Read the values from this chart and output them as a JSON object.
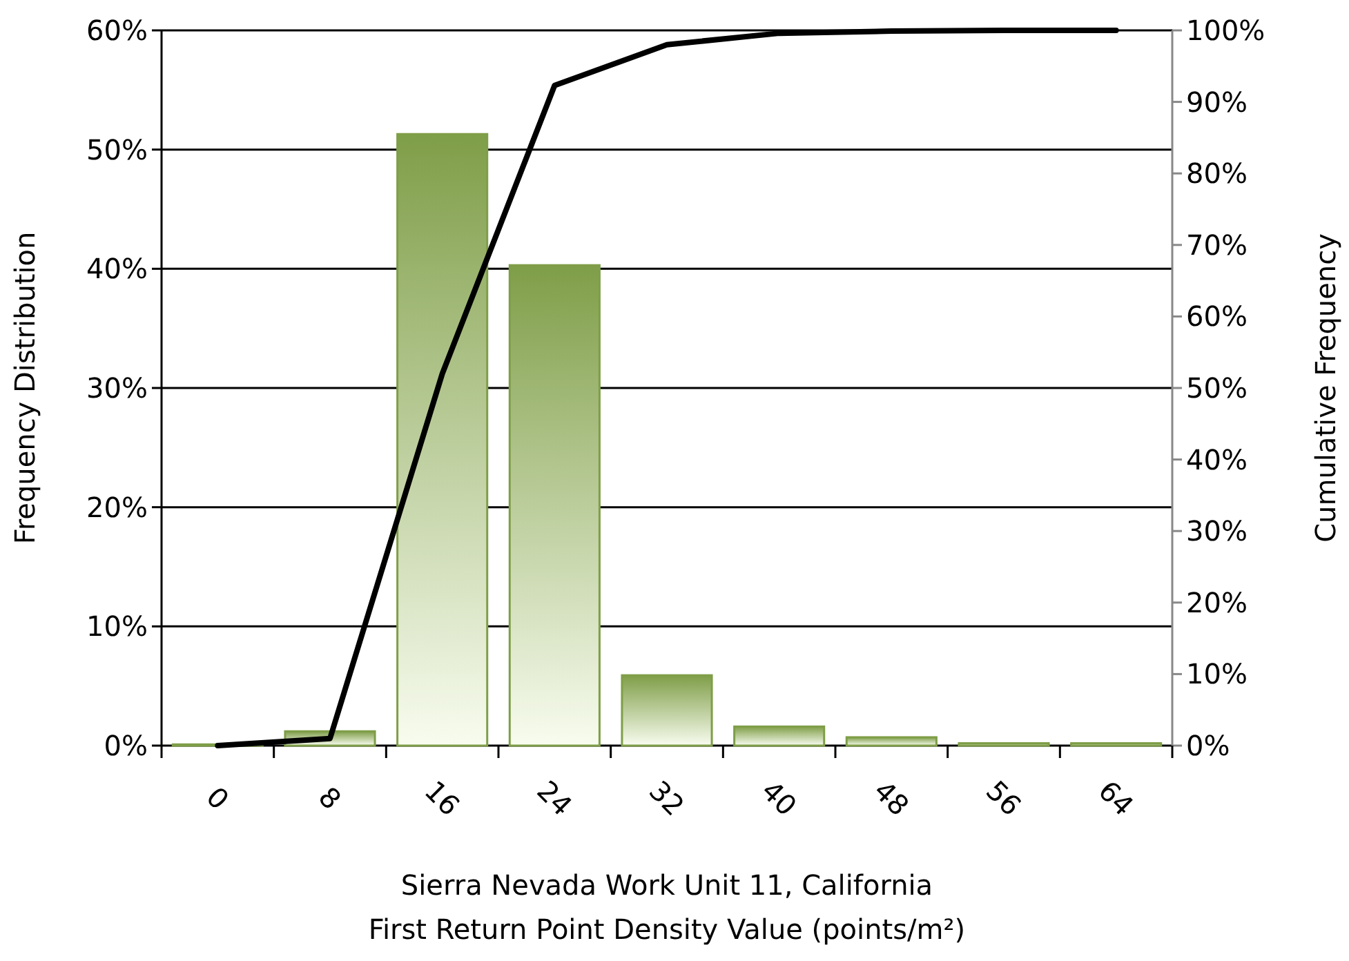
{
  "chart_data": {
    "type": "bar",
    "xlabel": "Sierra Nevada Work Unit 11, California\nFirst Return Point Density Value (points/m²)",
    "ylabel": "Frequency Distribution",
    "y2label": "Cumulative Frequency",
    "categories": [
      "0",
      "8",
      "16",
      "24",
      "32",
      "40",
      "48",
      "56",
      "64"
    ],
    "series": [
      {
        "color": "#7f9e48",
        "values": [
          0.1,
          1.2,
          51.3,
          40.3,
          5.9,
          1.6,
          0.7,
          0.2,
          0.2
        ]
      },
      {
        "type": "line",
        "axis": "y2",
        "color": "#000000",
        "values": [
          0,
          1,
          52,
          92.3,
          98,
          99.6,
          99.9,
          100,
          100
        ]
      }
    ],
    "ylim": [
      0,
      60
    ],
    "yticks": [
      {
        "value": 0,
        "label": "0%"
      },
      {
        "value": 10,
        "label": "10%"
      },
      {
        "value": 20,
        "label": "20%"
      },
      {
        "value": 30,
        "label": "30%"
      },
      {
        "value": 40,
        "label": "40%"
      },
      {
        "value": 50,
        "label": "50%"
      },
      {
        "value": 60,
        "label": "60%"
      }
    ],
    "y2lim": [
      0,
      100
    ],
    "y2ticks": [
      {
        "value": 0,
        "label": "0%"
      },
      {
        "value": 10,
        "label": "10%"
      },
      {
        "value": 20,
        "label": "20%"
      },
      {
        "value": 30,
        "label": "30%"
      },
      {
        "value": 40,
        "label": "40%"
      },
      {
        "value": 50,
        "label": "50%"
      },
      {
        "value": 60,
        "label": "60%"
      },
      {
        "value": 70,
        "label": "70%"
      },
      {
        "value": 80,
        "label": "80%"
      },
      {
        "value": 90,
        "label": "90%"
      },
      {
        "value": 100,
        "label": "100%"
      }
    ],
    "grid": "y",
    "marker": "none",
    "line_style": "solid"
  }
}
